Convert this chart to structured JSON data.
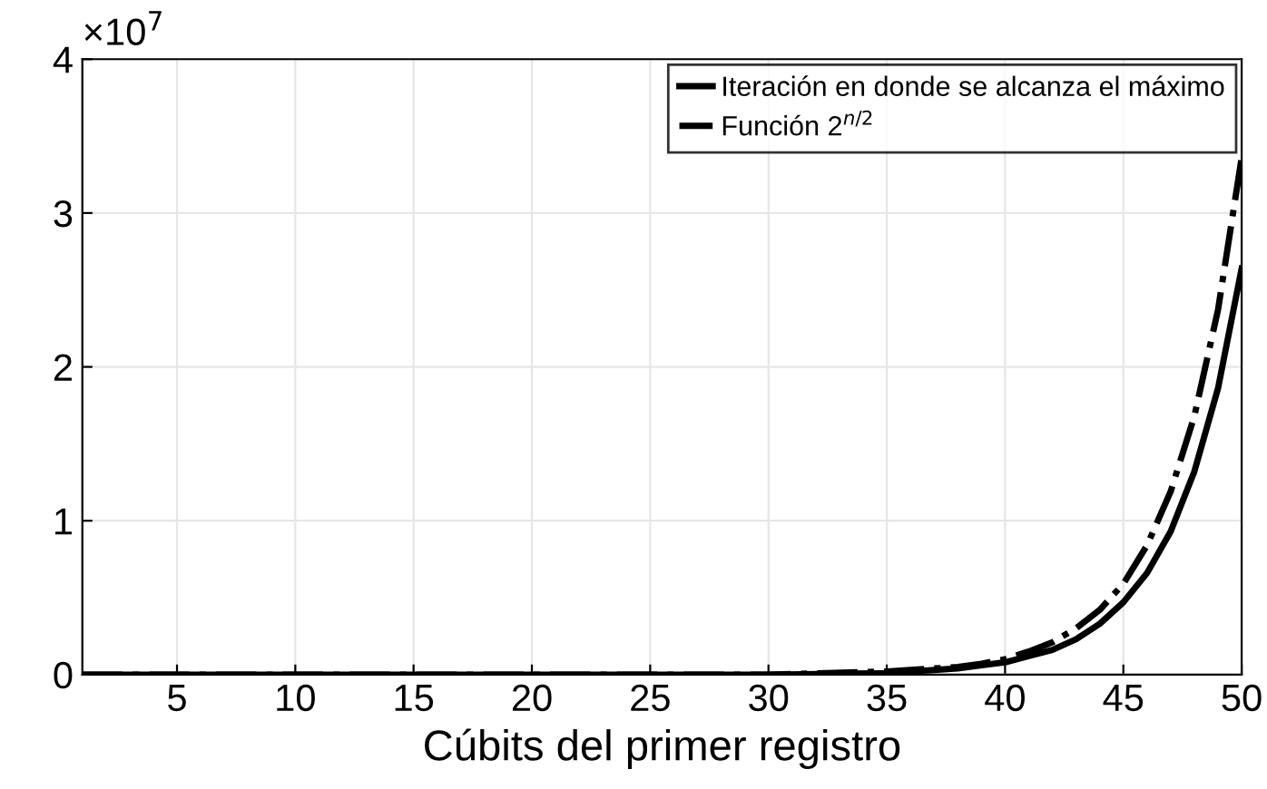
{
  "chart_data": {
    "type": "line",
    "xlabel": "Cúbits del primer registro",
    "annotations": [
      "×10$^{7}$"
    ],
    "x": [
      1,
      5,
      10,
      15,
      20,
      25,
      30,
      35,
      36,
      37,
      38,
      39,
      40,
      41,
      42,
      43,
      44,
      45,
      46,
      47,
      48,
      49,
      50
    ],
    "series": [
      {
        "name": "Iteración en donde se alcanza el máximo",
        "color": "#000000",
        "line_style": "solid",
        "values": [
          0,
          0,
          0,
          0,
          0,
          0,
          0,
          0.01,
          0.02,
          0.03,
          0.04,
          0.06,
          0.08,
          0.12,
          0.16,
          0.23,
          0.33,
          0.47,
          0.66,
          0.93,
          1.32,
          1.86,
          2.64
        ]
      },
      {
        "name": "Función 2$^{n/2}$",
        "color": "#000000",
        "line_style": "dashdot",
        "values": [
          0,
          0,
          0,
          0,
          0,
          0,
          0,
          0.02,
          0.03,
          0.04,
          0.05,
          0.07,
          0.1,
          0.15,
          0.21,
          0.3,
          0.42,
          0.59,
          0.84,
          1.19,
          1.68,
          2.37,
          3.36
        ]
      }
    ],
    "xlim": [
      1,
      50
    ],
    "xticks": [
      5,
      10,
      15,
      20,
      25,
      30,
      35,
      40,
      45,
      50
    ],
    "ylim": [
      0,
      4
    ],
    "yticks": [
      0,
      1,
      2,
      3,
      4
    ],
    "grid": true,
    "legend": "top right",
    "marker": "none"
  }
}
